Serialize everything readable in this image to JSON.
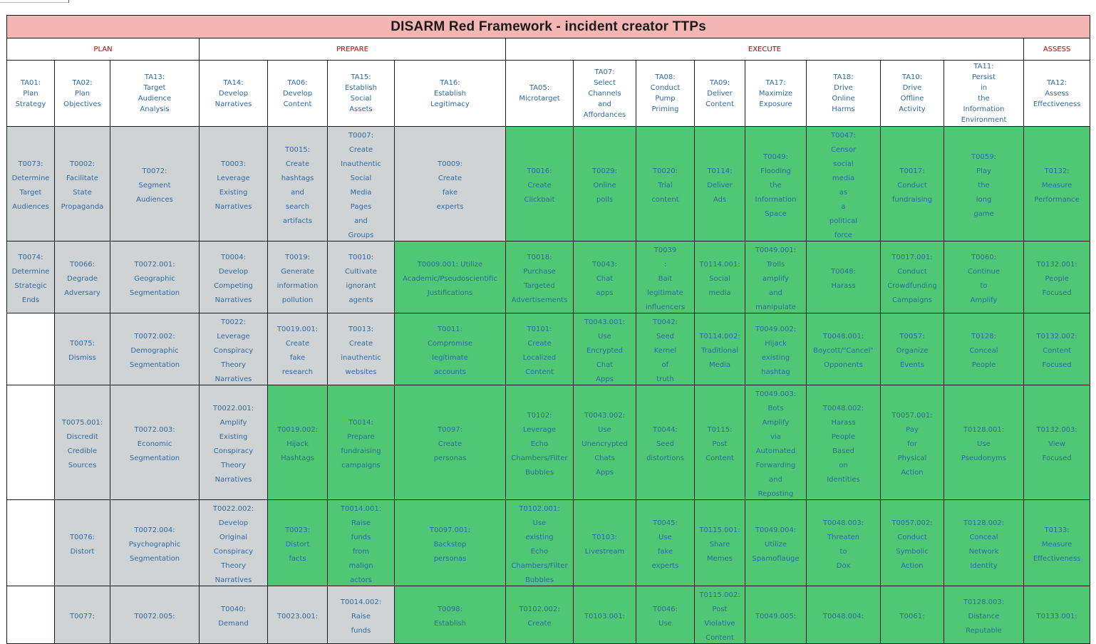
{
  "title": "DISARM Red Framework - incident creator TTPs",
  "colors": {
    "title_bg": "#f4b6b3",
    "phase_text": "#c00000",
    "link_text": "#2e6aa4",
    "plan_prepare_bg": "#d0d3d4",
    "execute_bg": "#4fc775"
  },
  "phases": [
    "PLAN",
    "PREPARE",
    "EXECUTE",
    "ASSESS"
  ],
  "tactics": [
    "TA01: Plan Strategy",
    "TA02: Plan Objectives",
    "TA13: Target Audience Analysis",
    "TA14: Develop Narratives",
    "TA06: Develop Content",
    "TA15: Establish Social Assets",
    "TA16: Establish Legitimacy",
    "TA05: Microtarget",
    "TA07: Select Channels and Affordances",
    "TA08: Conduct Pump Priming",
    "TA09: Deliver Content",
    "TA17: Maximize Exposure",
    "TA18: Drive Online Harms",
    "TA10: Drive Offline Activity",
    "TA11: Persist in the Information Environment",
    "TA12: Assess Effectiveness"
  ],
  "rows": [
    [
      {
        "text": "T0073: Determine Target Audiences",
        "bg": "gray"
      },
      {
        "text": "T0002: Facilitate State Propaganda",
        "bg": "gray"
      },
      {
        "text": "T0072: Segment Audiences",
        "bg": "gray"
      },
      {
        "text": "T0003: Leverage Existing Narratives",
        "bg": "gray"
      },
      {
        "text": "T0015: Create hashtags and search artifacts",
        "bg": "gray"
      },
      {
        "text": "T0007: Create Inauthentic Social Media Pages and Groups",
        "bg": "gray"
      },
      {
        "text": "T0009: Create fake experts",
        "bg": "gray"
      },
      {
        "text": "T0016: Create Clickbait",
        "bg": "green"
      },
      {
        "text": "T0029: Online polls",
        "bg": "green"
      },
      {
        "text": "T0020: Trial content",
        "bg": "green"
      },
      {
        "text": "T0114: Deliver Ads",
        "bg": "green"
      },
      {
        "text": "T0049: Flooding the Information Space",
        "bg": "green"
      },
      {
        "text": "T0047: Censor social media as a political force",
        "bg": "green"
      },
      {
        "text": "T0017: Conduct fundraising",
        "bg": "green"
      },
      {
        "text": "T0059: Play the long game",
        "bg": "green"
      },
      {
        "text": "T0132: Measure Performance",
        "bg": "green"
      }
    ],
    [
      {
        "text": "T0074: Determine Strategic Ends",
        "bg": "gray"
      },
      {
        "text": "T0066: Degrade Adversary",
        "bg": "gray"
      },
      {
        "text": "T0072.001: Geographic Segmentation",
        "bg": "gray"
      },
      {
        "text": "T0004: Develop Competing Narratives",
        "bg": "gray"
      },
      {
        "text": "T0019: Generate information pollution",
        "bg": "gray"
      },
      {
        "text": "T0010: Cultivate ignorant agents",
        "bg": "gray"
      },
      {
        "text": "T0009.001: Utilize Academic/Pseudoscientific Justifications",
        "bg": "green",
        "long": true
      },
      {
        "text": "T0018: Purchase Targeted Advertisements",
        "bg": "green"
      },
      {
        "text": "T0043: Chat apps",
        "bg": "green"
      },
      {
        "text": "T0039 : Bait legitimate influencers",
        "bg": "green"
      },
      {
        "text": "T0114.001: Social media",
        "bg": "green"
      },
      {
        "text": "T0049.001: Trolls amplify and manipulate",
        "bg": "green"
      },
      {
        "text": "T0048: Harass",
        "bg": "green"
      },
      {
        "text": "T0017.001: Conduct Crowdfunding Campaigns",
        "bg": "green"
      },
      {
        "text": "T0060: Continue to Amplify",
        "bg": "green"
      },
      {
        "text": "T0132.001: People Focused",
        "bg": "green"
      }
    ],
    [
      {
        "text": "",
        "bg": "white"
      },
      {
        "text": "T0075: Dismiss",
        "bg": "gray"
      },
      {
        "text": "T0072.002: Demographic Segmentation",
        "bg": "gray"
      },
      {
        "text": "T0022: Leverage Conspiracy Theory Narratives",
        "bg": "gray"
      },
      {
        "text": "T0019.001: Create fake research",
        "bg": "gray"
      },
      {
        "text": "T0013: Create inauthentic websites",
        "bg": "gray"
      },
      {
        "text": "T0011: Compromise legitimate accounts",
        "bg": "green"
      },
      {
        "text": "T0101: Create Localized Content",
        "bg": "green"
      },
      {
        "text": "T0043.001: Use Encrypted Chat Apps",
        "bg": "green"
      },
      {
        "text": "T0042: Seed Kernel of truth",
        "bg": "green"
      },
      {
        "text": "T0114.002: Traditional Media",
        "bg": "green"
      },
      {
        "text": "T0049.002: Hijack existing hashtag",
        "bg": "green"
      },
      {
        "text": "T0048.001: Boycott/\"Cancel\" Opponents",
        "bg": "green",
        "long": true
      },
      {
        "text": "T0057: Organize Events",
        "bg": "green"
      },
      {
        "text": "T0128: Conceal People",
        "bg": "green"
      },
      {
        "text": "T0132.002: Content Focused",
        "bg": "green"
      }
    ],
    [
      {
        "text": "",
        "bg": "white"
      },
      {
        "text": "T0075.001: Discredit Credible Sources",
        "bg": "gray"
      },
      {
        "text": "T0072.003: Economic Segmentation",
        "bg": "gray"
      },
      {
        "text": "T0022.001: Amplify Existing Conspiracy Theory Narratives",
        "bg": "gray"
      },
      {
        "text": "T0019.002: Hijack Hashtags",
        "bg": "green"
      },
      {
        "text": "T0014: Prepare fundraising campaigns",
        "bg": "green"
      },
      {
        "text": "T0097: Create personas",
        "bg": "green"
      },
      {
        "text": "T0102: Leverage Echo Chambers/Filter Bubbles",
        "bg": "green"
      },
      {
        "text": "T0043.002: Use Unencrypted Chats Apps",
        "bg": "green"
      },
      {
        "text": "T0044: Seed distortions",
        "bg": "green"
      },
      {
        "text": "T0115: Post Content",
        "bg": "green"
      },
      {
        "text": "T0049.003: Bots Amplify via Automated Forwarding and Reposting",
        "bg": "green"
      },
      {
        "text": "T0048.002: Harass People Based on Identities",
        "bg": "green"
      },
      {
        "text": "T0057.001: Pay for Physical Action",
        "bg": "green"
      },
      {
        "text": "T0128.001: Use Pseudonyms",
        "bg": "green"
      },
      {
        "text": "T0132.003: View Focused",
        "bg": "green"
      }
    ],
    [
      {
        "text": "",
        "bg": "white"
      },
      {
        "text": "T0076: Distort",
        "bg": "gray"
      },
      {
        "text": "T0072.004: Psychographic Segmentation",
        "bg": "gray"
      },
      {
        "text": "T0022.002: Develop Original Conspiracy Theory Narratives",
        "bg": "gray"
      },
      {
        "text": "T0023: Distort facts",
        "bg": "green"
      },
      {
        "text": "T0014.001: Raise funds from malign actors",
        "bg": "green"
      },
      {
        "text": "T0097.001: Backstop personas",
        "bg": "green"
      },
      {
        "text": "T0102.001: Use existing Echo Chambers/Filter Bubbles",
        "bg": "green"
      },
      {
        "text": "T0103: Livestream",
        "bg": "green"
      },
      {
        "text": "T0045: Use fake experts",
        "bg": "green"
      },
      {
        "text": "T0115.001: Share Memes",
        "bg": "green"
      },
      {
        "text": "T0049.004: Utilize Spamoflauge",
        "bg": "green"
      },
      {
        "text": "T0048.003: Threaten to Dox",
        "bg": "green"
      },
      {
        "text": "T0057.002: Conduct Symbolic Action",
        "bg": "green"
      },
      {
        "text": "T0128.002: Conceal Network Identity",
        "bg": "green"
      },
      {
        "text": "T0133: Measure Effectiveness",
        "bg": "green"
      }
    ],
    [
      {
        "text": "",
        "bg": "white"
      },
      {
        "text": "T0077:",
        "bg": "gray"
      },
      {
        "text": "T0072.005:",
        "bg": "gray"
      },
      {
        "text": "T0040: Demand",
        "bg": "gray"
      },
      {
        "text": "T0023.001:",
        "bg": "gray"
      },
      {
        "text": "T0014.002: Raise funds",
        "bg": "gray"
      },
      {
        "text": "T0098: Establish",
        "bg": "green"
      },
      {
        "text": "T0102.002: Create",
        "bg": "green"
      },
      {
        "text": "T0103.001:",
        "bg": "green"
      },
      {
        "text": "T0046: Use",
        "bg": "green"
      },
      {
        "text": "T0115.002: Post Violative Content",
        "bg": "green"
      },
      {
        "text": "T0049.005:",
        "bg": "green"
      },
      {
        "text": "T0048.004:",
        "bg": "green"
      },
      {
        "text": "T0061:",
        "bg": "green"
      },
      {
        "text": "T0128.003: Distance Reputable",
        "bg": "green"
      },
      {
        "text": "T0133.001:",
        "bg": "green"
      }
    ]
  ]
}
